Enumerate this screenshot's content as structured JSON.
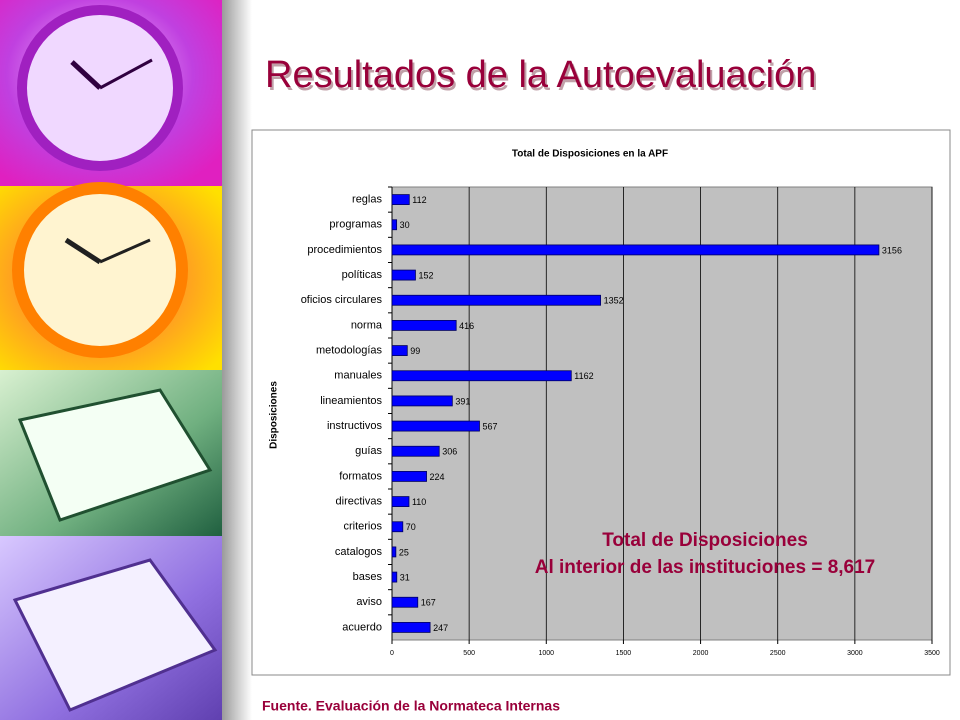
{
  "slide": {
    "title": "Resultados de la Autoevaluación",
    "annotation": [
      "Total de Disposiciones",
      "Al interior de las instituciones = 8,617"
    ],
    "source": "Fuente. Evaluación de la Normateca Internas"
  },
  "chart_data": {
    "type": "bar",
    "orientation": "horizontal",
    "title": "Total de Disposiciones en la APF",
    "ylabel": "Disposiciones",
    "categories": [
      "reglas",
      "programas",
      "procedimientos",
      "políticas",
      "oficios circulares",
      "norma",
      "metodologías",
      "manuales",
      "lineamientos",
      "instructivos",
      "guías",
      "formatos",
      "directivas",
      "criterios",
      "catalogos",
      "bases",
      "aviso",
      "acuerdo"
    ],
    "values": [
      112,
      30,
      3156,
      152,
      1352,
      416,
      99,
      1162,
      391,
      567,
      306,
      224,
      110,
      70,
      25,
      31,
      167,
      247
    ],
    "color": "#0000ff",
    "xlim": [
      0,
      3500
    ],
    "xticks": [
      0,
      500,
      1000,
      1500,
      2000,
      2500,
      3000,
      3500
    ],
    "grid": true
  }
}
